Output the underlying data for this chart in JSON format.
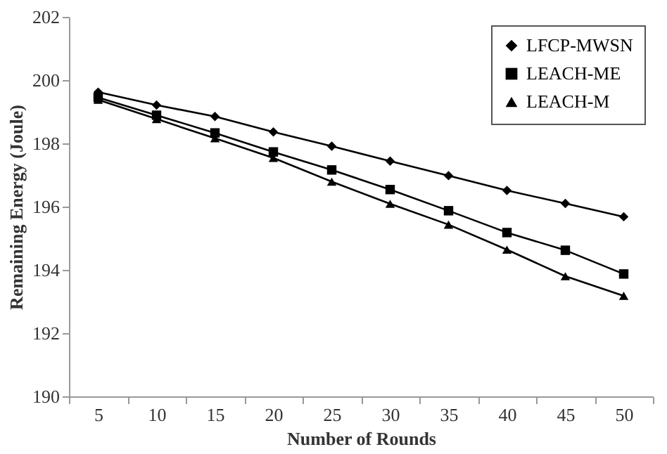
{
  "chart_data": {
    "type": "line",
    "xlabel": "Number of Rounds",
    "ylabel": "Remaining Energy (Joule)",
    "categories": [
      "5",
      "10",
      "15",
      "20",
      "25",
      "30",
      "35",
      "40",
      "45",
      "50"
    ],
    "ylim": [
      190,
      202
    ],
    "yticks": [
      190,
      192,
      194,
      196,
      198,
      200,
      202
    ],
    "grid": false,
    "legend": "top right",
    "line_style": "solid",
    "series": [
      {
        "name": "LFCP-MWSN",
        "color": "#000000",
        "marker": "diamond",
        "values": [
          199.62,
          199.21,
          198.85,
          198.36,
          197.91,
          197.44,
          196.98,
          196.51,
          196.1,
          195.68
        ]
      },
      {
        "name": "LEACH-ME",
        "color": "#000000",
        "marker": "square",
        "values": [
          199.45,
          198.89,
          198.33,
          197.73,
          197.16,
          196.54,
          195.87,
          195.18,
          194.62,
          193.87
        ]
      },
      {
        "name": "LEACH-M",
        "color": "#000000",
        "marker": "triangle",
        "values": [
          199.38,
          198.77,
          198.16,
          197.54,
          196.79,
          196.09,
          195.43,
          194.64,
          193.8,
          193.18
        ]
      }
    ]
  }
}
